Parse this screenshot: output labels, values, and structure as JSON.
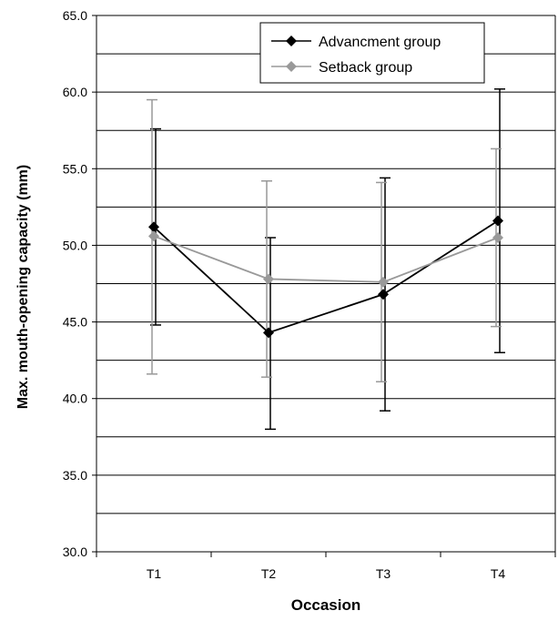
{
  "chart_data": {
    "type": "line",
    "title": "",
    "xlabel": "Occasion",
    "ylabel": "Max. mouth-opening capacity (mm)",
    "categories": [
      "T1",
      "T2",
      "T3",
      "T4"
    ],
    "ylim": [
      30.0,
      65.0
    ],
    "yticks": [
      "30.0",
      "35.0",
      "40.0",
      "45.0",
      "50.0",
      "55.0",
      "60.0",
      "65.0"
    ],
    "gridlines": [
      32.5,
      35.0,
      37.5,
      40.0,
      42.5,
      45.0,
      47.5,
      50.0,
      52.5,
      55.0,
      57.5,
      60.0,
      62.5
    ],
    "grid": true,
    "legend_position": "top-right",
    "series": [
      {
        "name": "Advancment group",
        "color": "#000000",
        "marker": "diamond",
        "values": [
          51.2,
          44.3,
          46.8,
          51.6
        ],
        "error_low": [
          44.8,
          38.0,
          39.2,
          43.0
        ],
        "error_high": [
          57.6,
          50.5,
          54.4,
          60.2
        ]
      },
      {
        "name": "Setback group",
        "color": "#999999",
        "marker": "diamond",
        "values": [
          50.6,
          47.8,
          47.6,
          50.5
        ],
        "error_low": [
          41.6,
          41.4,
          41.1,
          44.7
        ],
        "error_high": [
          59.5,
          54.2,
          54.1,
          56.3
        ]
      }
    ]
  }
}
